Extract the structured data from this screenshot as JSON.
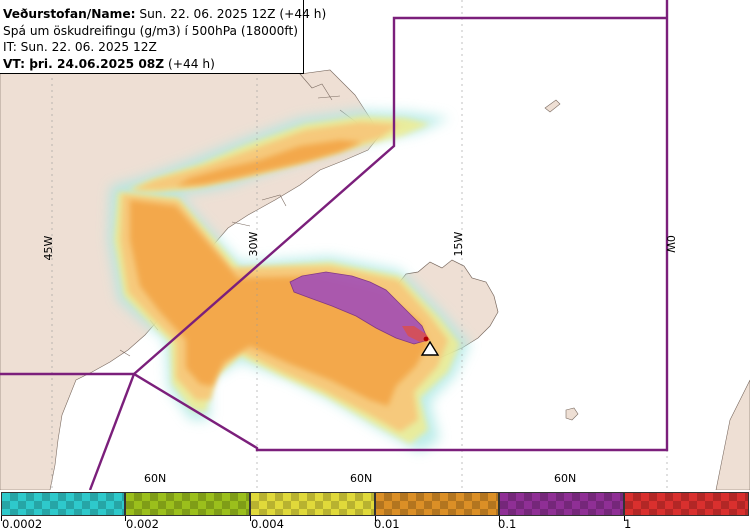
{
  "info": {
    "line1_bold": "Veðurstofan/Name:",
    "line1_rest": " Sun. 22. 06. 2025 12Z (+44 h)",
    "line2": "Spá um öskudreifingu (g/m3) í 500hPa (18000ft)",
    "line3": "IT: Sun. 22. 06. 2025 12Z",
    "line4_bold": "VT: þri. 24.06.2025 08Z",
    "line4_rest": " (+44 h)"
  },
  "map": {
    "longitude_labels": [
      "45W",
      "30W",
      "15W",
      "0W"
    ],
    "latitude_labels": [
      "60N",
      "60N",
      "60N"
    ],
    "colors": {
      "land": "#eedfd4",
      "sea": "#ffffff",
      "boundary": "#7b1f7b",
      "ash_low": "#f6c97c",
      "ash_mid": "#f3a84c",
      "ash_high": "#a452b6",
      "ash_peak": "#d94f4f",
      "fringe_yellow": "#f3ec8a",
      "fringe_cyan": "#a8e7e3"
    },
    "source_icon": "volcano-triangle-icon"
  },
  "legend": {
    "swatches": [
      {
        "color": "#2ec9cb",
        "name": "cyan"
      },
      {
        "color": "#9bbf1c",
        "name": "green"
      },
      {
        "color": "#e0d93a",
        "name": "yellow"
      },
      {
        "color": "#db8f26",
        "name": "orange"
      },
      {
        "color": "#8f2f95",
        "name": "purple"
      },
      {
        "color": "#d9302e",
        "name": "red"
      }
    ],
    "ticks": [
      "0.0002",
      "0.002",
      "0.004",
      "0.01",
      "0.1",
      "1"
    ]
  }
}
